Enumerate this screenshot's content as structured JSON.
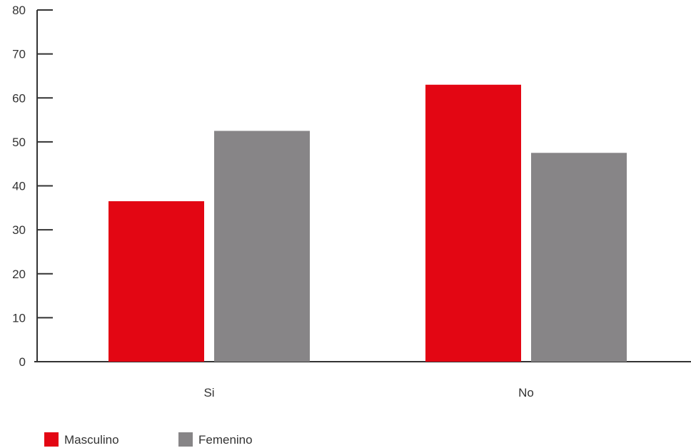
{
  "chart_data": {
    "type": "bar",
    "title": "",
    "xlabel": "",
    "ylabel": "",
    "categories": [
      "Si",
      "No"
    ],
    "series": [
      {
        "name": "Masculino",
        "color": "#e30613",
        "values": [
          36.5,
          63
        ]
      },
      {
        "name": "Femenino",
        "color": "#878587",
        "values": [
          52.5,
          47.5
        ]
      }
    ],
    "ylim": [
      0,
      80
    ],
    "yticks": [
      "0",
      "10",
      "20",
      "30",
      "40",
      "50",
      "60",
      "70",
      "80"
    ],
    "grid": false,
    "legend_position": "bottom-left",
    "axis_color": "#333333"
  }
}
